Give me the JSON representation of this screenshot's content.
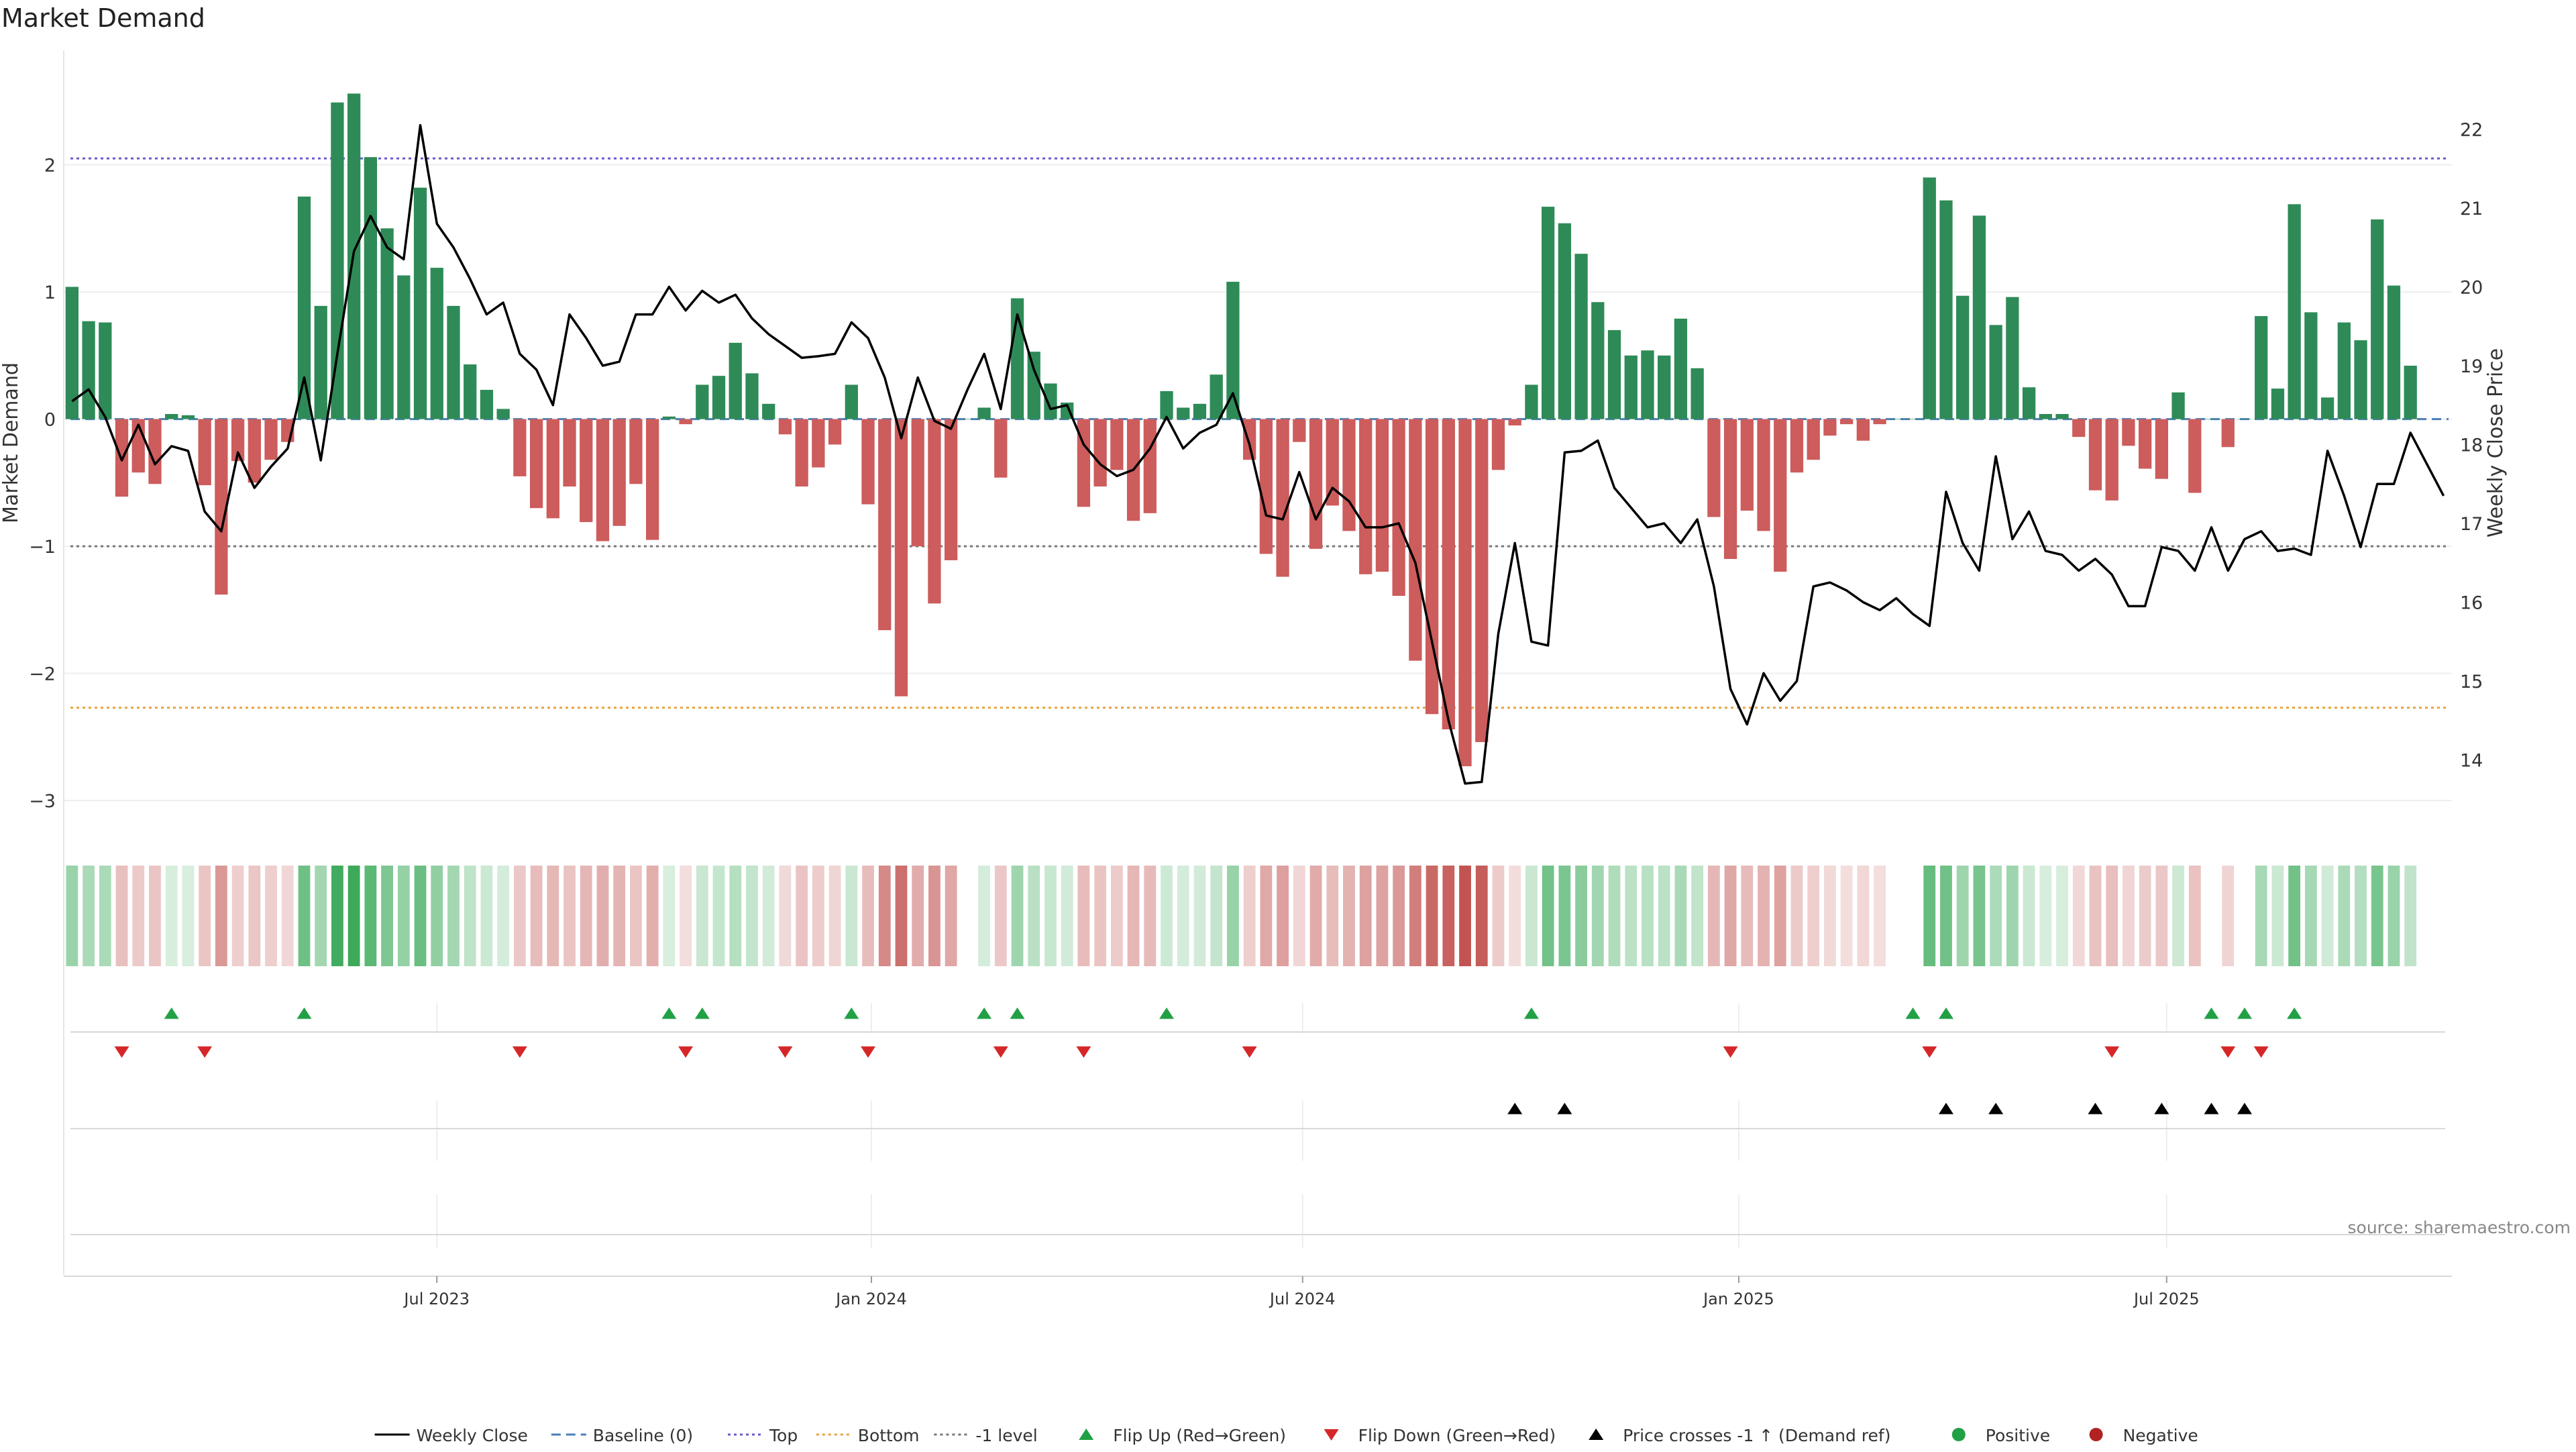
{
  "chart_data": {
    "type": "bar",
    "title": "Market Demand",
    "ylabel": "Market Demand",
    "y2label": "Weekly Close Price",
    "ylim": [
      -3.3,
      2.9
    ],
    "y2lim": [
      13.0,
      23.0
    ],
    "yticks": [
      -3,
      -2,
      -1,
      0,
      1,
      2
    ],
    "yticklabels": [
      "−3",
      "−2",
      "−1",
      "0",
      "1",
      "2"
    ],
    "y2ticks": [
      14,
      15,
      16,
      17,
      18,
      19,
      20,
      21,
      22
    ],
    "y2ticklabels": [
      "14",
      "15",
      "16",
      "17",
      "18",
      "19",
      "20",
      "21",
      "22"
    ],
    "x_week_index_range": [
      -0.5,
      143.5
    ],
    "xticks": [
      {
        "label": "Jul 2023",
        "week": 22
      },
      {
        "label": "Jan 2024",
        "week": 48.2
      },
      {
        "label": "Jul 2024",
        "week": 74.2
      },
      {
        "label": "Jan 2025",
        "week": 100.5
      },
      {
        "label": "Jul 2025",
        "week": 126.3
      }
    ],
    "reference_lines": [
      {
        "name": "Top",
        "value": 2.05,
        "color": "#6a5acd",
        "style": "dotted"
      },
      {
        "name": "Bottom",
        "value": -2.27,
        "color": "#e8a33c",
        "style": "dotted"
      },
      {
        "name": "-1 level",
        "value": -1.0,
        "color": "#777777",
        "style": "dotted"
      },
      {
        "name": "Baseline (0)",
        "value": 0.0,
        "color": "#4a7fb5",
        "style": "dashed"
      }
    ],
    "series": [
      {
        "name": "Market Demand",
        "kind": "bar",
        "positive_color": "#2e8b57",
        "negative_color": "#cd5c5c",
        "values": [
          1.04,
          0.77,
          0.76,
          -0.61,
          -0.42,
          -0.51,
          0.04,
          0.03,
          -0.52,
          -1.38,
          -0.33,
          -0.5,
          -0.32,
          -0.18,
          1.75,
          0.89,
          2.49,
          2.56,
          2.06,
          1.5,
          1.13,
          1.82,
          1.19,
          0.89,
          0.43,
          0.23,
          0.08,
          -0.45,
          -0.7,
          -0.78,
          -0.53,
          -0.81,
          -0.96,
          -0.84,
          -0.51,
          -0.95,
          0.02,
          -0.04,
          0.27,
          0.34,
          0.6,
          0.36,
          0.12,
          -0.12,
          -0.53,
          -0.38,
          -0.2,
          0.27,
          -0.67,
          -1.66,
          -2.18,
          -1.0,
          -1.45,
          -1.11,
          0.0,
          0.09,
          -0.46,
          0.95,
          0.53,
          0.28,
          0.13,
          -0.69,
          -0.53,
          -0.4,
          -0.8,
          -0.74,
          0.22,
          0.09,
          0.12,
          0.35,
          1.08,
          -0.32,
          -1.06,
          -1.24,
          -0.18,
          -1.02,
          -0.68,
          -0.88,
          -1.22,
          -1.2,
          -1.39,
          -1.9,
          -2.32,
          -2.44,
          -2.73,
          -2.54,
          -0.4,
          -0.05,
          0.27,
          1.67,
          1.54,
          1.3,
          0.92,
          0.7,
          0.5,
          0.54,
          0.5,
          0.79,
          0.4,
          -0.77,
          -1.1,
          -0.72,
          -0.88,
          -1.2,
          -0.42,
          -0.32,
          -0.13,
          -0.04,
          -0.17,
          -0.04,
          0.0,
          0.0,
          1.9,
          1.72,
          0.97,
          1.6,
          0.74,
          0.96,
          0.25,
          0.04,
          0.04,
          -0.14,
          -0.56,
          -0.64,
          -0.21,
          -0.39,
          -0.47,
          0.21,
          -0.58,
          0.0,
          -0.22,
          0.0,
          0.81,
          0.24,
          1.69,
          0.84,
          0.17,
          0.76,
          0.62,
          1.57,
          1.05,
          0.42
        ]
      },
      {
        "name": "Weekly Close",
        "kind": "line",
        "axis": "right",
        "color": "#000000",
        "values": [
          18.55,
          18.7,
          18.35,
          17.8,
          18.25,
          17.75,
          17.98,
          17.92,
          17.15,
          16.9,
          17.9,
          17.45,
          17.72,
          17.95,
          18.85,
          17.8,
          19.15,
          20.45,
          20.9,
          20.5,
          20.35,
          22.05,
          20.8,
          20.5,
          20.1,
          19.65,
          19.8,
          19.15,
          18.95,
          18.5,
          19.65,
          19.35,
          19.0,
          19.05,
          19.65,
          19.65,
          20.0,
          19.7,
          19.95,
          19.8,
          19.9,
          19.6,
          19.4,
          19.25,
          19.1,
          19.12,
          19.15,
          19.55,
          19.35,
          18.85,
          18.08,
          18.85,
          18.3,
          18.2,
          18.7,
          19.15,
          18.45,
          19.65,
          18.95,
          18.45,
          18.5,
          18.0,
          17.75,
          17.6,
          17.68,
          17.95,
          18.35,
          17.95,
          18.15,
          18.25,
          18.65,
          18.0,
          17.1,
          17.05,
          17.65,
          17.05,
          17.45,
          17.28,
          16.95,
          16.95,
          17.0,
          16.5,
          15.5,
          14.5,
          13.7,
          13.72,
          15.6,
          16.75,
          15.5,
          15.45,
          17.9,
          17.92,
          18.05,
          17.45,
          17.2,
          16.95,
          17.0,
          16.75,
          17.05,
          16.2,
          14.9,
          14.45,
          15.1,
          14.75,
          15.0,
          16.2,
          16.25,
          16.15,
          16.0,
          15.9,
          16.05,
          15.85,
          15.7,
          17.4,
          16.75,
          16.4,
          17.85,
          16.8,
          17.15,
          16.65,
          16.6,
          16.4,
          16.55,
          16.35,
          15.95,
          15.95,
          16.7,
          16.65,
          16.4,
          16.95,
          16.4,
          16.8,
          16.9,
          16.65,
          16.68,
          16.6,
          17.92,
          17.35,
          16.7,
          17.5,
          17.5,
          18.15,
          17.75,
          17.35
        ]
      }
    ],
    "heat_strip_description_note": "Color strip under main plot mirrors Market Demand sign and magnitude per week",
    "events": {
      "flip_up_weeks": [
        6,
        14,
        36,
        38,
        47,
        55,
        57,
        66,
        88,
        111,
        113,
        129,
        131,
        134
      ],
      "flip_down_weeks": [
        3,
        8,
        27,
        37,
        43,
        48,
        56,
        61,
        71,
        100,
        112,
        123,
        130,
        132
      ],
      "price_cross_weeks": [
        87,
        90,
        113,
        116,
        122,
        126,
        129,
        131
      ]
    },
    "legend": [
      {
        "label": "Weekly Close",
        "marker": "line",
        "color": "#000000"
      },
      {
        "label": "Baseline (0)",
        "marker": "dashed",
        "color": "#4a7fb5"
      },
      {
        "label": "Top",
        "marker": "dotted",
        "color": "#6a5acd"
      },
      {
        "label": "Bottom",
        "marker": "dotted",
        "color": "#e8a33c"
      },
      {
        "label": "-1 level",
        "marker": "dotted",
        "color": "#777777"
      },
      {
        "label": "Flip Up (Red→Green)",
        "marker": "triangle-up",
        "color": "#22a045"
      },
      {
        "label": "Flip Down (Green→Red)",
        "marker": "triangle-down",
        "color": "#d62728"
      },
      {
        "label": "Price crosses -1 ↑ (Demand ref)",
        "marker": "triangle-up",
        "color": "#000000"
      },
      {
        "label": "Positive",
        "marker": "circle",
        "color": "#22a045"
      },
      {
        "label": "Negative",
        "marker": "circle",
        "color": "#b22222"
      }
    ],
    "legend_position": "bottom-center",
    "source_note": "source: sharemaestro.com"
  }
}
